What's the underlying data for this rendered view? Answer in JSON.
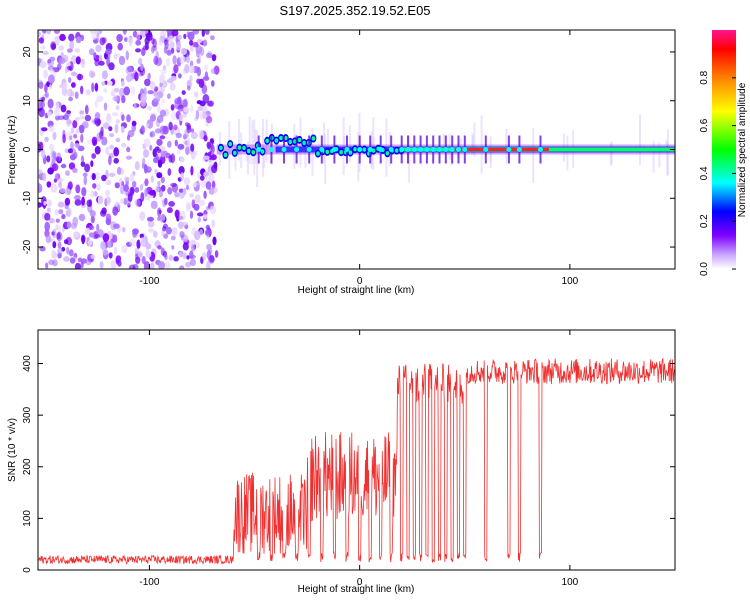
{
  "title": "S197.2025.352.19.52.E05",
  "chart_data": [
    {
      "type": "heatmap",
      "name": "spectrogram",
      "xlabel": "Height of straight line (km)",
      "ylabel": "Frequency (Hz)",
      "xlim": [
        -153,
        150
      ],
      "ylim": [
        -24.5,
        24.5
      ],
      "x_ticks": [
        -100,
        0,
        100
      ],
      "y_ticks": [
        -20,
        -10,
        0,
        10,
        20
      ],
      "noise_region_x": [
        -153,
        -68
      ],
      "signal_onset_km": -68,
      "signal_track_freq_hz": 0,
      "colorbar": {
        "label": "Normalized spectral amplitude",
        "range": [
          0.0,
          1.0
        ],
        "ticks": [
          0.0,
          0.2,
          0.4,
          0.6,
          0.8
        ],
        "tick_labels": [
          "0.0",
          "0.2",
          "0.4",
          "0.6",
          "0.8"
        ],
        "colormap": [
          "#ffffff",
          "#7f00ff",
          "#0000ff",
          "#00ffff",
          "#00ff00",
          "#ffff00",
          "#ff8000",
          "#ff0000",
          "#ff1493"
        ]
      }
    },
    {
      "type": "line",
      "name": "snr",
      "xlabel": "Height of straight line (km)",
      "ylabel": "SNR (10 * v/v)",
      "xlim": [
        -153,
        150
      ],
      "ylim": [
        0,
        465
      ],
      "x_ticks": [
        -100,
        0,
        100
      ],
      "y_ticks": [
        0,
        100,
        200,
        300,
        400
      ],
      "color": "#f03030",
      "segments": [
        {
          "x_range": [
            -153,
            -60
          ],
          "level": 20,
          "noise": 8
        },
        {
          "x_range": [
            -60,
            -25
          ],
          "level": 110,
          "noise": 80
        },
        {
          "x_range": [
            -25,
            18
          ],
          "level": 180,
          "noise": 90
        },
        {
          "x_range": [
            18,
            50
          ],
          "level": 360,
          "noise": 40
        },
        {
          "x_range": [
            50,
            85
          ],
          "level": 385,
          "noise": 25
        },
        {
          "x_range": [
            85,
            150
          ],
          "level": 385,
          "noise": 25
        }
      ],
      "dropouts_km": [
        -48,
        -42,
        -36,
        -30,
        -24,
        -18,
        -12,
        -6,
        0,
        5,
        10,
        15,
        20,
        23,
        26,
        29,
        32,
        35,
        38,
        41,
        44,
        47,
        50,
        60,
        71,
        76,
        86
      ],
      "dropout_level": 15
    }
  ]
}
